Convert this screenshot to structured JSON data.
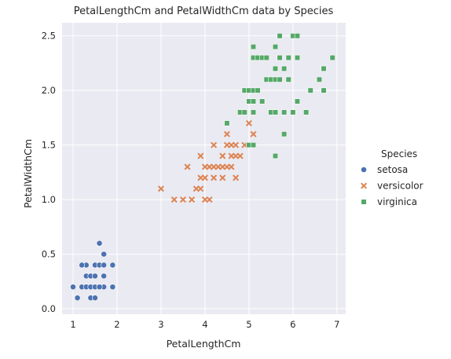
{
  "chart_data": {
    "type": "scatter",
    "title": "PetalLengthCm and PetalWidthCm data by Species",
    "xlabel": "PetalLengthCm",
    "ylabel": "PetalWidthCm",
    "xlim": [
      0.75,
      7.2
    ],
    "ylim": [
      -0.05,
      2.62
    ],
    "xticks": [
      1,
      2,
      3,
      4,
      5,
      6,
      7
    ],
    "xtick_labels": [
      "1",
      "2",
      "3",
      "4",
      "5",
      "6",
      "7"
    ],
    "yticks": [
      0.0,
      0.5,
      1.0,
      1.5,
      2.0,
      2.5
    ],
    "ytick_labels": [
      "0.0",
      "0.5",
      "1.0",
      "1.5",
      "2.0",
      "2.5"
    ],
    "grid": true,
    "legend_title": "Species",
    "legend_placement": "right",
    "series": [
      {
        "name": "setosa",
        "marker": "circle",
        "color": "#4c72b0",
        "points": [
          [
            1.0,
            0.2
          ],
          [
            1.1,
            0.1
          ],
          [
            1.2,
            0.2
          ],
          [
            1.3,
            0.2
          ],
          [
            1.3,
            0.3
          ],
          [
            1.3,
            0.4
          ],
          [
            1.4,
            0.1
          ],
          [
            1.4,
            0.2
          ],
          [
            1.4,
            0.3
          ],
          [
            1.5,
            0.1
          ],
          [
            1.5,
            0.2
          ],
          [
            1.5,
            0.3
          ],
          [
            1.5,
            0.4
          ],
          [
            1.6,
            0.2
          ],
          [
            1.6,
            0.4
          ],
          [
            1.6,
            0.6
          ],
          [
            1.7,
            0.2
          ],
          [
            1.7,
            0.3
          ],
          [
            1.7,
            0.4
          ],
          [
            1.7,
            0.5
          ],
          [
            1.9,
            0.2
          ],
          [
            1.9,
            0.4
          ],
          [
            1.2,
            0.4
          ],
          [
            1.6,
            0.2
          ]
        ]
      },
      {
        "name": "versicolor",
        "marker": "x",
        "color": "#dd8452",
        "points": [
          [
            3.0,
            1.1
          ],
          [
            3.3,
            1.0
          ],
          [
            3.5,
            1.0
          ],
          [
            3.6,
            1.3
          ],
          [
            3.7,
            1.0
          ],
          [
            3.8,
            1.1
          ],
          [
            3.9,
            1.1
          ],
          [
            3.9,
            1.2
          ],
          [
            3.9,
            1.4
          ],
          [
            4.0,
            1.0
          ],
          [
            4.0,
            1.2
          ],
          [
            4.0,
            1.3
          ],
          [
            4.1,
            1.0
          ],
          [
            4.1,
            1.3
          ],
          [
            4.2,
            1.2
          ],
          [
            4.2,
            1.3
          ],
          [
            4.2,
            1.5
          ],
          [
            4.3,
            1.3
          ],
          [
            4.4,
            1.2
          ],
          [
            4.4,
            1.3
          ],
          [
            4.4,
            1.4
          ],
          [
            4.5,
            1.3
          ],
          [
            4.5,
            1.5
          ],
          [
            4.5,
            1.6
          ],
          [
            4.6,
            1.3
          ],
          [
            4.6,
            1.4
          ],
          [
            4.6,
            1.5
          ],
          [
            4.7,
            1.2
          ],
          [
            4.7,
            1.4
          ],
          [
            4.7,
            1.5
          ],
          [
            4.8,
            1.4
          ],
          [
            4.8,
            1.8
          ],
          [
            4.9,
            1.5
          ],
          [
            5.0,
            1.7
          ],
          [
            5.1,
            1.6
          ]
        ]
      },
      {
        "name": "virginica",
        "marker": "square",
        "color": "#55a868",
        "points": [
          [
            4.5,
            1.7
          ],
          [
            4.8,
            1.8
          ],
          [
            4.9,
            1.8
          ],
          [
            4.9,
            2.0
          ],
          [
            5.0,
            1.5
          ],
          [
            5.0,
            1.9
          ],
          [
            5.0,
            2.0
          ],
          [
            5.1,
            1.5
          ],
          [
            5.1,
            1.8
          ],
          [
            5.1,
            1.9
          ],
          [
            5.1,
            2.0
          ],
          [
            5.1,
            2.3
          ],
          [
            5.1,
            2.4
          ],
          [
            5.2,
            2.0
          ],
          [
            5.2,
            2.3
          ],
          [
            5.3,
            1.9
          ],
          [
            5.3,
            2.3
          ],
          [
            5.4,
            2.1
          ],
          [
            5.4,
            2.3
          ],
          [
            5.5,
            1.8
          ],
          [
            5.5,
            2.1
          ],
          [
            5.6,
            1.4
          ],
          [
            5.6,
            1.8
          ],
          [
            5.6,
            2.1
          ],
          [
            5.6,
            2.2
          ],
          [
            5.6,
            2.4
          ],
          [
            5.7,
            2.1
          ],
          [
            5.7,
            2.3
          ],
          [
            5.7,
            2.5
          ],
          [
            5.8,
            1.6
          ],
          [
            5.8,
            1.8
          ],
          [
            5.8,
            2.2
          ],
          [
            5.9,
            2.1
          ],
          [
            5.9,
            2.3
          ],
          [
            6.0,
            1.8
          ],
          [
            6.0,
            2.5
          ],
          [
            6.1,
            1.9
          ],
          [
            6.1,
            2.3
          ],
          [
            6.1,
            2.5
          ],
          [
            6.3,
            1.8
          ],
          [
            6.4,
            2.0
          ],
          [
            6.6,
            2.1
          ],
          [
            6.7,
            2.0
          ],
          [
            6.7,
            2.2
          ],
          [
            6.9,
            2.3
          ]
        ]
      }
    ]
  }
}
